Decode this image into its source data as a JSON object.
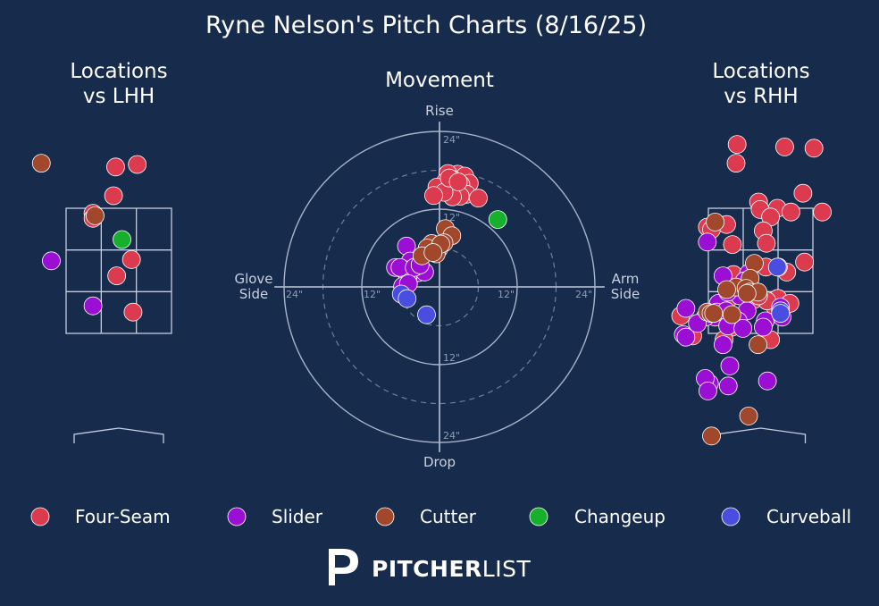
{
  "title": "Ryne Nelson's Pitch Charts (8/16/25)",
  "colors": {
    "background": "#172b4d",
    "text": "#ffffff",
    "axis": "#a8b4c8",
    "zone_line": "#c6cedb"
  },
  "panels": {
    "lhh": {
      "title_line1": "Locations",
      "title_line2": "vs LHH"
    },
    "movement": {
      "title": "Movement"
    },
    "rhh": {
      "title_line1": "Locations",
      "title_line2": "vs RHH"
    }
  },
  "pitch_types": [
    {
      "name": "Four-Seam",
      "color": "#dc3a4f"
    },
    {
      "name": "Slider",
      "color": "#9b0fd4"
    },
    {
      "name": "Cutter",
      "color": "#a0472c"
    },
    {
      "name": "Changeup",
      "color": "#16b02c"
    },
    {
      "name": "Curveball",
      "color": "#4a4ee0"
    }
  ],
  "brand": {
    "bold": "PITCHER",
    "light": "LIST"
  },
  "chart_data": [
    {
      "type": "scatter",
      "title": "Locations vs LHH",
      "units": "zone (x: -1 to 1 left-right, y: 0 bottom to 1 top)",
      "series": [
        {
          "name": "Four-Seam",
          "points": [
            [
              -0.06,
              1.33
            ],
            [
              0.35,
              1.35
            ],
            [
              -0.1,
              1.1
            ],
            [
              -0.49,
              0.96
            ],
            [
              -0.49,
              0.92
            ],
            [
              0.24,
              0.59
            ],
            [
              -0.04,
              0.46
            ],
            [
              0.27,
              0.17
            ]
          ]
        },
        {
          "name": "Slider",
          "points": [
            [
              -1.28,
              0.58
            ],
            [
              -0.49,
              0.22
            ]
          ]
        },
        {
          "name": "Cutter",
          "points": [
            [
              -1.47,
              1.36
            ],
            [
              -0.45,
              0.94
            ]
          ]
        },
        {
          "name": "Changeup",
          "points": [
            [
              0.06,
              0.75
            ]
          ]
        }
      ]
    },
    {
      "type": "scatter",
      "title": "Movement",
      "units": "inches (x: glove side negative / arm side positive; y: drop negative / rise positive)",
      "axis_labels": {
        "top": "Rise",
        "bottom": "Drop",
        "left_line1": "Glove",
        "left_line2": "Side",
        "right_line1": "Arm",
        "right_line2": "Side"
      },
      "ring_labels": [
        "12\"",
        "24\""
      ],
      "series": [
        {
          "name": "Four-Seam",
          "points": [
            [
              2.8,
              17.4
            ],
            [
              3.9,
              17.1
            ],
            [
              1.3,
              17.5
            ],
            [
              4.6,
              16.0
            ],
            [
              2.0,
              16.6
            ],
            [
              0.9,
              16.2
            ],
            [
              3.3,
              15.8
            ],
            [
              2.2,
              15.0
            ],
            [
              1.5,
              14.9
            ],
            [
              4.2,
              14.3
            ],
            [
              6.0,
              13.7
            ],
            [
              -0.4,
              15.4
            ],
            [
              3.2,
              14.0
            ],
            [
              2.0,
              13.9
            ],
            [
              0.7,
              14.6
            ],
            [
              -0.9,
              14.1
            ],
            [
              1.5,
              16.8
            ],
            [
              2.9,
              16.2
            ]
          ]
        },
        {
          "name": "Slider",
          "points": [
            [
              -5.1,
              6.3
            ],
            [
              -4.5,
              4.0
            ],
            [
              -3.7,
              3.1
            ],
            [
              -5.5,
              2.6
            ],
            [
              -4.0,
              2.5
            ],
            [
              -3.3,
              2.2
            ],
            [
              -6.8,
              3.0
            ],
            [
              -4.9,
              1.4
            ],
            [
              -2.3,
              2.3
            ],
            [
              -5.0,
              2.6
            ],
            [
              -6.1,
              3.0
            ],
            [
              -3.9,
              3.0
            ],
            [
              -5.7,
              0.1
            ],
            [
              -4.8,
              0.5
            ],
            [
              -3.0,
              3.4
            ]
          ]
        },
        {
          "name": "Cutter",
          "points": [
            [
              0.9,
              9.0
            ],
            [
              1.9,
              7.9
            ],
            [
              -1.2,
              6.7
            ],
            [
              0.7,
              6.8
            ],
            [
              -0.1,
              5.9
            ],
            [
              -1.9,
              6.0
            ],
            [
              -0.5,
              5.1
            ],
            [
              -2.7,
              4.8
            ],
            [
              0.2,
              6.6
            ],
            [
              -1.0,
              5.3
            ]
          ]
        },
        {
          "name": "Changeup",
          "points": [
            [
              9.0,
              10.4
            ]
          ]
        },
        {
          "name": "Curveball",
          "points": [
            [
              -5.9,
              -1.1
            ],
            [
              -5.0,
              -1.8
            ],
            [
              -2.0,
              -4.3
            ]
          ]
        }
      ]
    },
    {
      "type": "scatter",
      "title": "Locations vs RHH",
      "units": "zone (x: -1 to 1 left-right, y: 0 bottom to 1 top)",
      "series": [
        {
          "name": "Four-Seam",
          "points": [
            [
              -0.45,
              1.51
            ],
            [
              0.46,
              1.49
            ],
            [
              1.02,
              1.48
            ],
            [
              -0.47,
              1.36
            ],
            [
              0.81,
              1.12
            ],
            [
              -0.04,
              1.05
            ],
            [
              -0.01,
              0.99
            ],
            [
              0.32,
              1.0
            ],
            [
              0.58,
              0.97
            ],
            [
              1.18,
              0.97
            ],
            [
              0.19,
              0.93
            ],
            [
              -1.02,
              0.85
            ],
            [
              -0.94,
              0.83
            ],
            [
              -0.65,
              0.87
            ],
            [
              0.05,
              0.82
            ],
            [
              -0.54,
              0.71
            ],
            [
              0.11,
              0.72
            ],
            [
              0.84,
              0.57
            ],
            [
              0.5,
              0.49
            ],
            [
              -0.55,
              0.05
            ],
            [
              -0.7,
              -0.05
            ],
            [
              0.19,
              -0.05
            ],
            [
              -0.61,
              0.28
            ],
            [
              -0.13,
              0.27
            ],
            [
              0.28,
              0.21
            ],
            [
              -0.48,
              0.1
            ],
            [
              -1.3,
              -0.02
            ],
            [
              -1.53,
              0.14
            ],
            [
              0.33,
              0.28
            ],
            [
              0.12,
              0.26
            ],
            [
              -0.04,
              0.3
            ],
            [
              0.56,
              0.24
            ],
            [
              -0.52,
              0.47
            ],
            [
              0.1,
              0.53
            ],
            [
              -0.23,
              0.38
            ]
          ]
        },
        {
          "name": "Slider",
          "points": [
            [
              -1.02,
              0.73
            ],
            [
              -0.72,
              0.46
            ],
            [
              -0.23,
              0.48
            ],
            [
              -0.31,
              0.42
            ],
            [
              -0.56,
              0.35
            ],
            [
              -0.4,
              0.3
            ],
            [
              -0.81,
              0.24
            ],
            [
              -0.63,
              0.33
            ],
            [
              -1.43,
              0.2
            ],
            [
              -0.87,
              0.13
            ],
            [
              -1.06,
              0.13
            ],
            [
              -1.21,
              0.08
            ],
            [
              -0.84,
              0.17
            ],
            [
              -0.26,
              0.18
            ],
            [
              -0.66,
              0.18
            ],
            [
              -0.43,
              0.1
            ],
            [
              -0.63,
              0.06
            ],
            [
              -0.34,
              0.04
            ],
            [
              0.09,
              0.1
            ],
            [
              0.41,
              0.13
            ],
            [
              -1.48,
              -0.01
            ],
            [
              -1.43,
              -0.03
            ],
            [
              -0.72,
              -0.09
            ],
            [
              -0.59,
              -0.26
            ],
            [
              -0.98,
              -0.4
            ],
            [
              -1.06,
              -0.36
            ],
            [
              -0.62,
              -0.42
            ],
            [
              0.13,
              -0.38
            ],
            [
              0.38,
              0.21
            ],
            [
              0.05,
              0.05
            ],
            [
              -1.01,
              -0.46
            ]
          ]
        },
        {
          "name": "Cutter",
          "points": [
            [
              -0.87,
              0.89
            ],
            [
              -0.12,
              0.56
            ],
            [
              0.34,
              0.53
            ],
            [
              -0.2,
              0.44
            ],
            [
              -0.47,
              0.37
            ],
            [
              -0.28,
              0.36
            ],
            [
              -0.21,
              0.33
            ],
            [
              -0.05,
              0.33
            ],
            [
              -0.65,
              0.35
            ],
            [
              -1.02,
              0.17
            ],
            [
              -0.95,
              0.16
            ],
            [
              -0.55,
              0.15
            ],
            [
              -0.9,
              0.16
            ],
            [
              -0.26,
              0.32
            ],
            [
              -0.05,
              -0.09
            ],
            [
              -0.23,
              -0.66
            ],
            [
              -0.94,
              -0.82
            ]
          ]
        },
        {
          "name": "Curveball",
          "points": [
            [
              0.32,
              0.53
            ],
            [
              0.38,
              0.18
            ],
            [
              0.38,
              0.16
            ]
          ]
        }
      ]
    }
  ]
}
